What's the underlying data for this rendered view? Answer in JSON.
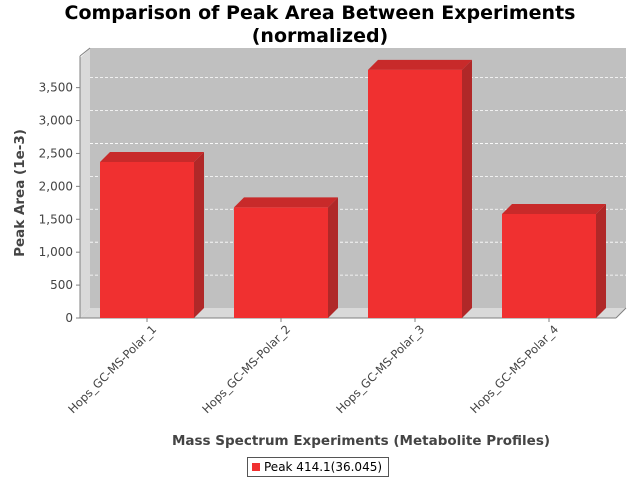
{
  "chart_data": {
    "type": "bar",
    "title": "Comparison of Peak Area Between Experiments (normalized)",
    "title_lines": [
      "Comparison of Peak Area Between Experiments",
      "(normalized)"
    ],
    "xlabel": "Mass Spectrum Experiments (Metabolite Profiles)",
    "ylabel": "Peak Area (1e-3)",
    "categories": [
      "Hops_GC-MS-Polar_1",
      "Hops_GC-MS-Polar_2",
      "Hops_GC-MS-Polar_3",
      "Hops_GC-MS-Polar_4"
    ],
    "series": [
      {
        "name": "Peak 414.1(36.045)",
        "values": [
          2370,
          1680,
          3770,
          1580
        ]
      }
    ],
    "ylim": [
      0,
      3950
    ],
    "yticks": [
      0,
      500,
      1000,
      1500,
      2000,
      2500,
      3000,
      3500
    ],
    "ytick_labels": [
      "0",
      "500",
      "1,000",
      "1,500",
      "2,000",
      "2,500",
      "3,000",
      "3,500"
    ],
    "grid": true,
    "style": "3d",
    "legend_position": "bottom",
    "colors": {
      "bar_front": "#f03030",
      "bar_side": "#b02828",
      "bar_top": "#c82a2a",
      "plot_background": "#c0c0c0",
      "plot_wall": "#d9d9d9"
    }
  }
}
